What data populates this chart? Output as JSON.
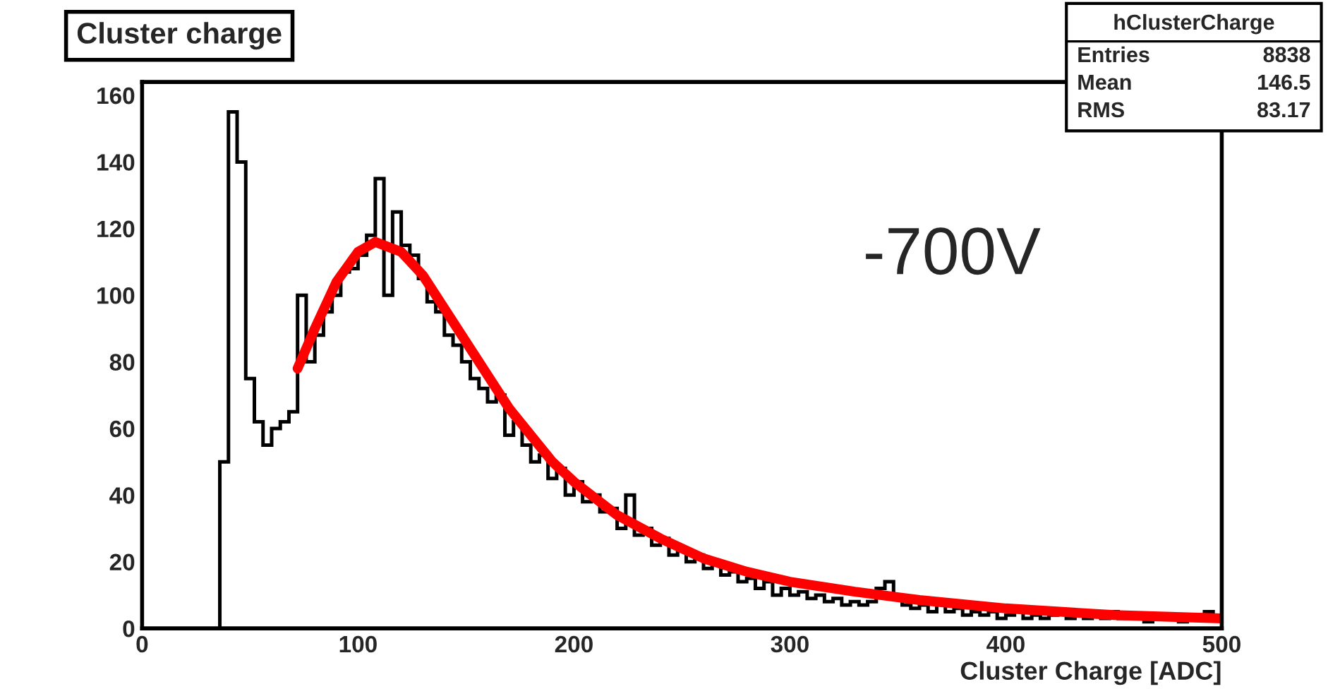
{
  "chart_data": {
    "type": "histogram",
    "title": "Cluster charge",
    "xlabel": "Cluster Charge [ADC]",
    "bins": [
      36,
      40,
      44,
      48,
      52,
      56,
      60,
      64,
      68,
      72,
      76,
      80,
      84,
      88,
      92,
      96,
      100,
      104,
      108,
      112,
      116,
      120,
      124,
      128,
      132,
      136,
      140,
      144,
      148,
      152,
      156,
      160,
      164,
      168,
      172,
      176,
      180,
      184,
      188,
      192,
      196,
      200,
      204,
      208,
      212,
      216,
      220,
      224,
      228,
      232,
      236,
      240,
      244,
      248,
      252,
      256,
      260,
      264,
      268,
      272,
      276,
      280,
      284,
      288,
      292,
      296,
      300,
      304,
      308,
      312,
      316,
      320,
      324,
      328,
      332,
      336,
      340,
      344,
      348,
      352,
      356,
      360,
      364,
      368,
      372,
      376,
      380,
      384,
      388,
      392,
      396,
      400,
      404,
      408,
      412,
      416,
      420,
      424,
      428,
      432,
      436,
      440,
      444,
      448,
      452,
      456,
      460,
      464,
      468,
      472,
      476,
      480,
      484,
      488,
      492,
      496,
      500
    ],
    "series": [
      {
        "color": "#000000",
        "values": [
          50,
          155,
          140,
          75,
          62,
          55,
          60,
          62,
          65,
          100,
          80,
          88,
          95,
          100,
          107,
          108,
          112,
          118,
          135,
          100,
          125,
          115,
          112,
          105,
          98,
          95,
          88,
          85,
          80,
          75,
          72,
          68,
          70,
          58,
          62,
          55,
          50,
          52,
          45,
          48,
          40,
          44,
          38,
          40,
          35,
          36,
          30,
          40,
          28,
          30,
          25,
          27,
          22,
          24,
          20,
          22,
          18,
          20,
          16,
          17,
          14,
          15,
          12,
          14,
          10,
          12,
          10,
          11,
          9,
          10,
          8,
          9,
          7,
          8,
          7,
          8,
          12,
          14,
          10,
          7,
          6,
          7,
          5,
          8,
          5,
          6,
          4,
          5,
          4,
          5,
          3,
          4,
          5,
          3,
          4,
          3,
          4,
          5,
          3,
          4,
          3,
          4,
          3,
          5,
          3,
          4,
          3,
          2,
          3,
          4,
          3,
          2,
          3,
          4,
          5,
          3
        ]
      },
      {
        "type": "line",
        "color": "#ff0000",
        "x": [
          72,
          80,
          90,
          100,
          108,
          120,
          130,
          140,
          150,
          160,
          170,
          180,
          190,
          200,
          220,
          240,
          260,
          280,
          300,
          330,
          360,
          400,
          450,
          500
        ],
        "values": [
          78,
          90,
          104,
          113,
          116,
          113,
          106,
          96,
          86,
          76,
          66,
          58,
          50,
          44,
          34,
          27,
          21,
          17,
          14,
          11,
          8.5,
          6,
          4,
          3
        ]
      }
    ],
    "xlim": [
      0,
      500
    ],
    "ylim": [
      0,
      164
    ],
    "xticks": [
      0,
      100,
      200,
      300,
      400,
      500
    ],
    "yticks": [
      0,
      20,
      40,
      60,
      80,
      100,
      120,
      140,
      160
    ],
    "grid": false,
    "legend": false,
    "annotations": [
      "-700V",
      "hClusterCharge",
      "Entries",
      "8838",
      "Mean",
      "146.5",
      "RMS",
      "83.17"
    ]
  }
}
